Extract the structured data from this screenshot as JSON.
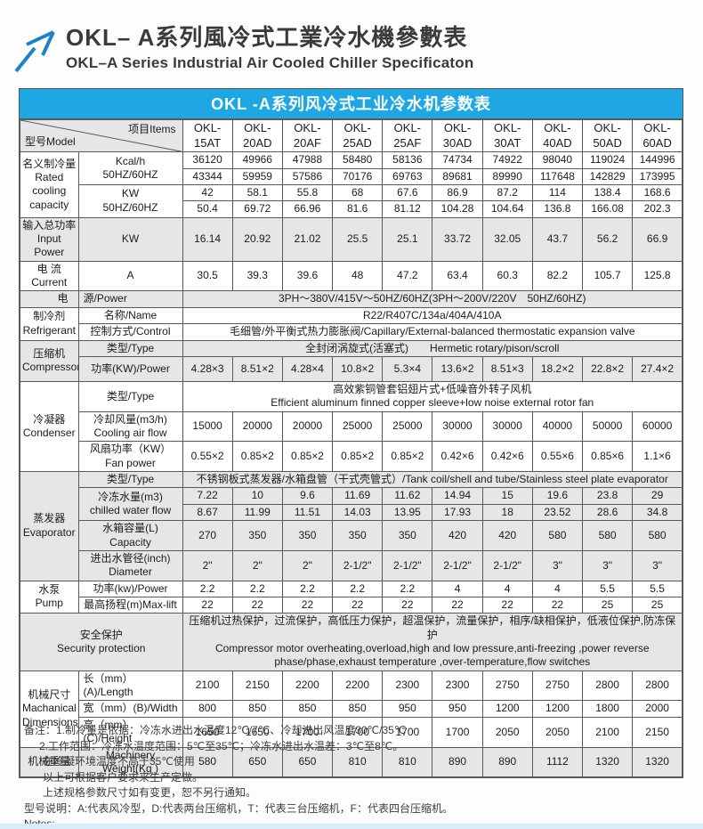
{
  "colors": {
    "accent_blue": "#1ea7e3",
    "band_gray": "#e6e6e6",
    "border_gray": "#58595b",
    "arrow_blue": "#1b82c9",
    "bottom_strip_blue": "#d8edf8",
    "title_text": "#3a3a3a"
  },
  "header": {
    "title_zh": "OKL– A系列風冷式工業冷水機參數表",
    "subtitle_en": "OKL–A Series Industrial Air Cooled Chiller Specificaton",
    "logo_icon": "arrow-up-right-icon"
  },
  "table": {
    "title": "OKL -A系列风冷式工业冷水机参数表",
    "corner": {
      "model_label": "型号Model",
      "items_label": "项目Items"
    },
    "rows": [
      {
        "name": "model-header-row",
        "cells": [
          {
            "corner": true,
            "cs": 2,
            "name": "corner-cell"
          },
          {
            "v": [
              "OKL-\n15AT",
              "OKL-\n20AD",
              "OKL-\n20AF",
              "OKL-\n25AD",
              "OKL-\n25AF",
              "OKL-\n30AD",
              "OKL-\n30AT",
              "OKL-\n40AD",
              "OKL-\n50AD",
              "OKL-\n60AD"
            ],
            "cls": "model",
            "name": "model-header-cell"
          }
        ]
      },
      {
        "cells": [
          {
            "t": "名义制冷量\nRated\ncooling\ncapacity",
            "rs": 4,
            "name": "section-label"
          },
          {
            "t": "Kcal/h\n50HZ/60HZ",
            "rs": 2,
            "name": "row-label"
          },
          {
            "v": [
              "36120",
              "49966",
              "47988",
              "58480",
              "58136",
              "74734",
              "74922",
              "98040",
              "119024",
              "144996"
            ]
          }
        ]
      },
      {
        "cells": [
          {
            "v": [
              "43344",
              "59959",
              "57586",
              "70176",
              "69763",
              "89681",
              "89990",
              "117648",
              "142829",
              "173995"
            ]
          }
        ]
      },
      {
        "cells": [
          {
            "t": "KW\n50HZ/60HZ",
            "rs": 2,
            "name": "row-label"
          },
          {
            "v": [
              "42",
              "58.1",
              "55.8",
              "68",
              "67.6",
              "86.9",
              "87.2",
              "114",
              "138.4",
              "168.6"
            ]
          }
        ]
      },
      {
        "cells": [
          {
            "v": [
              "50.4",
              "69.72",
              "66.96",
              "81.6",
              "81.12",
              "104.28",
              "104.64",
              "136.8",
              "166.08",
              "202.3"
            ]
          }
        ]
      },
      {
        "shade": true,
        "cells": [
          {
            "t": "输入总功率\nInput Power",
            "name": "section-label"
          },
          {
            "t": "KW",
            "name": "row-label"
          },
          {
            "v": [
              "16.14",
              "20.92",
              "21.02",
              "25.5",
              "25.1",
              "33.72",
              "32.05",
              "43.7",
              "56.2",
              "66.9"
            ]
          }
        ]
      },
      {
        "cells": [
          {
            "t": "电 流\nCurrent",
            "name": "section-label"
          },
          {
            "t": "A",
            "name": "row-label"
          },
          {
            "v": [
              "30.5",
              "39.3",
              "39.6",
              "48",
              "47.2",
              "63.4",
              "60.3",
              "82.2",
              "105.7",
              "125.8"
            ]
          }
        ]
      },
      {
        "shade": true,
        "cells": [
          {
            "t": "电",
            "cls": "right",
            "name": "section-label"
          },
          {
            "t": "源/Power",
            "cls": "left",
            "name": "row-label"
          },
          {
            "t": "3PH～380V/415V～50HZ/60HZ(3PH～200V/220V　50HZ/60HZ)",
            "cs": 10,
            "name": "span-value"
          }
        ]
      },
      {
        "cells": [
          {
            "t": "制冷剂\nRefrigerant",
            "rs": 2,
            "name": "section-label"
          },
          {
            "t": "名称/Name",
            "name": "row-label"
          },
          {
            "t": "R22/R407C/134a/404A/410A",
            "cs": 10,
            "name": "span-value"
          }
        ]
      },
      {
        "cells": [
          {
            "t": "控制方式/Control",
            "name": "row-label"
          },
          {
            "t": "毛细管/外平衡式热力膨胀阀/Capillary/External-balanced thermostatic expansion valve",
            "cs": 10,
            "name": "span-value"
          }
        ]
      },
      {
        "shade": true,
        "cells": [
          {
            "t": "压缩机\nCompressor",
            "rs": 2,
            "name": "section-label"
          },
          {
            "t": "类型/Type",
            "name": "row-label"
          },
          {
            "t": "全封闭涡旋式(活塞式)　　Hermetic rotary/pison/scroll",
            "cs": 10,
            "name": "span-value"
          }
        ]
      },
      {
        "shade": true,
        "cls": "h28",
        "cells": [
          {
            "t": "功率(KW)/Power",
            "name": "row-label"
          },
          {
            "v": [
              "4.28×3",
              "8.51×2",
              "4.28×4",
              "10.8×2",
              "5.3×4",
              "13.6×2",
              "8.51×3",
              "18.2×2",
              "22.8×2",
              "27.4×2"
            ]
          }
        ]
      },
      {
        "cells": [
          {
            "t": "冷凝器\nCondenser",
            "rs": 3,
            "name": "section-label"
          },
          {
            "t": "类型/Type",
            "name": "row-label"
          },
          {
            "t": "高效紫铜管套铝翅片式+低噪音外转子风机\nEfficient aluminum finned copper sleeve+low noise external rotor fan",
            "cs": 10,
            "name": "span-value"
          }
        ]
      },
      {
        "cells": [
          {
            "t": "冷却风量(m3/h)\nCooling air flow",
            "name": "row-label"
          },
          {
            "v": [
              "15000",
              "20000",
              "20000",
              "25000",
              "25000",
              "30000",
              "30000",
              "40000",
              "50000",
              "60000"
            ]
          }
        ]
      },
      {
        "cells": [
          {
            "t": "风扇功率（KW）\nFan power",
            "name": "row-label"
          },
          {
            "v": [
              "0.55×2",
              "0.85×2",
              "0.85×2",
              "0.85×2",
              "0.85×2",
              "0.42×6",
              "0.42×6",
              "0.55×6",
              "0.85×6",
              "1.1×6"
            ]
          }
        ]
      },
      {
        "shade": true,
        "cells": [
          {
            "t": "蒸发器\nEvaporator",
            "rs": 5,
            "name": "section-label"
          },
          {
            "t": "类型/Type",
            "name": "row-label"
          },
          {
            "t": "不锈钢板式蒸发器/水箱盘管（干式壳管式）/Tank coil/shell and tube/Stainless steel plate evaporator",
            "cs": 10,
            "name": "span-value"
          }
        ]
      },
      {
        "shade": true,
        "cells": [
          {
            "t": "冷冻水量(m3)\nchilled water flow",
            "rs": 2,
            "name": "row-label"
          },
          {
            "v": [
              "7.22",
              "10",
              "9.6",
              "11.69",
              "11.62",
              "14.94",
              "15",
              "19.6",
              "23.8",
              "29"
            ]
          }
        ]
      },
      {
        "shade": true,
        "cells": [
          {
            "v": [
              "8.67",
              "11.99",
              "11.51",
              "14.03",
              "13.95",
              "17.93",
              "18",
              "23.52",
              "28.6",
              "34.8"
            ]
          }
        ]
      },
      {
        "shade": true,
        "cells": [
          {
            "t": "水箱容量(L)\nCapacity",
            "name": "row-label"
          },
          {
            "v": [
              "270",
              "350",
              "350",
              "350",
              "350",
              "420",
              "420",
              "580",
              "580",
              "580"
            ]
          }
        ]
      },
      {
        "shade": true,
        "cells": [
          {
            "t": "进出水管径(inch)\nDiameter",
            "name": "row-label"
          },
          {
            "v": [
              "2\"",
              "2\"",
              "2\"",
              "2-1/2\"",
              "2-1/2\"",
              "2-1/2\"",
              "2-1/2\"",
              "3\"",
              "3\"",
              "3\""
            ]
          }
        ]
      },
      {
        "cells": [
          {
            "t": "水泵\nPump",
            "rs": 2,
            "name": "section-label"
          },
          {
            "t": "功率(kw)/Power",
            "name": "row-label"
          },
          {
            "v": [
              "2.2",
              "2.2",
              "2.2",
              "2.2",
              "2.2",
              "4",
              "4",
              "4",
              "5.5",
              "5.5"
            ]
          }
        ]
      },
      {
        "cells": [
          {
            "t": "最高扬程(m)Max-lift",
            "name": "row-label"
          },
          {
            "v": [
              "22",
              "22",
              "22",
              "22",
              "22",
              "22",
              "22",
              "22",
              "25",
              "25"
            ]
          }
        ]
      },
      {
        "shade": true,
        "cells": [
          {
            "t": "安全保护\nSecurity protection",
            "cs": 2,
            "name": "section-label"
          },
          {
            "t": "压缩机过热保护，过流保护，高低压力保护，超温保护，流量保护，相序/缺相保护，低液位保护,防冻保护\nCompressor motor overheating,overload,high and low pressure,anti-freezing ,power reverse\nphase/phase,exhaust temperature ,over-temperature,flow switches",
            "cs": 10,
            "name": "span-value"
          }
        ]
      },
      {
        "cells": [
          {
            "t": "机械尺寸\nMachanical\nDimensions",
            "rs": 3,
            "name": "section-label"
          },
          {
            "t": "长（mm）(A)/Length",
            "cls": "left",
            "name": "row-label"
          },
          {
            "v": [
              "2100",
              "2150",
              "2200",
              "2200",
              "2300",
              "2300",
              "2750",
              "2750",
              "2800",
              "2800"
            ]
          }
        ]
      },
      {
        "cells": [
          {
            "t": "宽（mm）(B)/Width",
            "cls": "left",
            "name": "row-label"
          },
          {
            "v": [
              "800",
              "850",
              "850",
              "850",
              "950",
              "950",
              "1200",
              "1200",
              "1800",
              "2000"
            ]
          }
        ]
      },
      {
        "cells": [
          {
            "t": "高（mm）(C)/Height",
            "cls": "left",
            "name": "row-label"
          },
          {
            "v": [
              "1650",
              "1650",
              "1700",
              "1700",
              "1700",
              "1700",
              "2050",
              "2050",
              "2100",
              "2150"
            ]
          }
        ]
      },
      {
        "shade": true,
        "cells": [
          {
            "t": "机械重量",
            "name": "section-label"
          },
          {
            "t": "Machinery\nWeight(Kg )",
            "name": "row-label"
          },
          {
            "v": [
              "580",
              "650",
              "650",
              "810",
              "810",
              "890",
              "890",
              "1112",
              "1320",
              "1320"
            ]
          }
        ]
      }
    ]
  },
  "notes": {
    "lines": [
      {
        "indent": 0,
        "text": "备注：1.制冷量是依据：冷冻水进出水温度12℃/7℃、冷却进出风温度30℃/35℃"
      },
      {
        "indent": 1,
        "text": "2.工作范围：冷冻水温度范围：5℃至35℃；冷冻水进出水温差：3℃至8℃。"
      },
      {
        "indent": 2,
        "text": "在冷凝环境温度不高于35℃使用"
      },
      {
        "indent": 2,
        "text": "以上可根据客户要求来生产定做。"
      },
      {
        "indent": 2,
        "text": "上述规格参数尺寸如有变更，恕不另行通知。"
      },
      {
        "indent": 0,
        "text": "型号说明：A:代表风冷型，D:代表两台压缩机，T：代表三台压缩机，F：代表四台压缩机。"
      },
      {
        "indent": 0,
        "text": "Notes:"
      }
    ]
  }
}
